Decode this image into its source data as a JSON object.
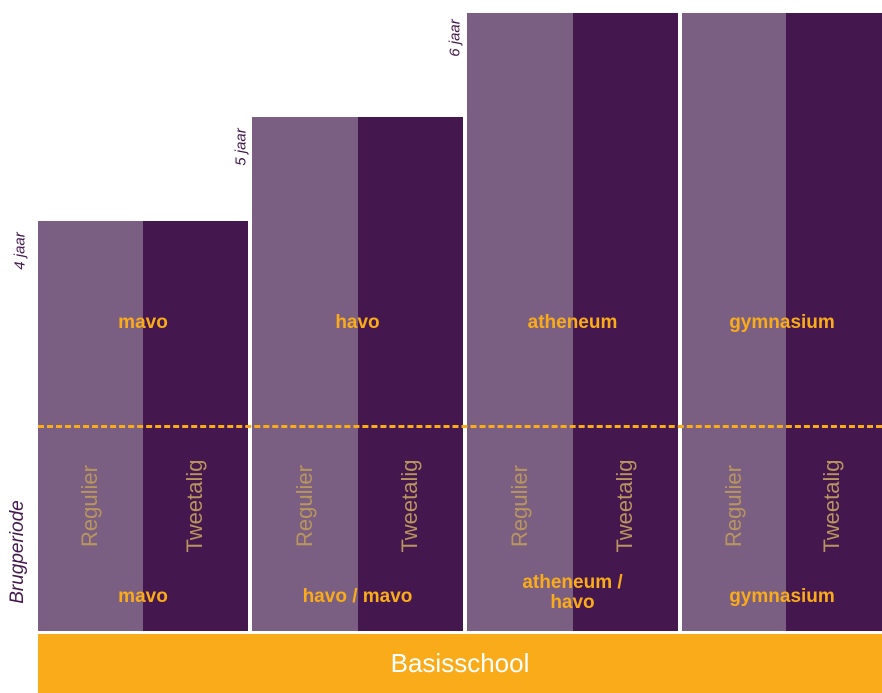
{
  "colors": {
    "light": "#7a5f82",
    "dark": "#44174f",
    "accent": "#f9ab1a",
    "variant_text": "#b8945e",
    "basis_text": "#ffffff"
  },
  "brugperiode_label": "Brugperiode",
  "basisschool_label": "Basisschool",
  "columns": [
    {
      "upper_track": "mavo",
      "lower_track": "mavo",
      "duration": "4 jaar",
      "variant_left": "Regulier",
      "variant_right": "Tweetalig"
    },
    {
      "upper_track": "havo",
      "lower_track": "havo / mavo",
      "duration": "5 jaar",
      "variant_left": "Regulier",
      "variant_right": "Tweetalig"
    },
    {
      "upper_track": "atheneum",
      "lower_track": "atheneum / havo",
      "duration": "6 jaar",
      "variant_left": "Regulier",
      "variant_right": "Tweetalig"
    },
    {
      "upper_track": "gymnasium",
      "lower_track": "gymnasium",
      "duration": "",
      "variant_left": "Regulier",
      "variant_right": "Tweetalig"
    }
  ]
}
